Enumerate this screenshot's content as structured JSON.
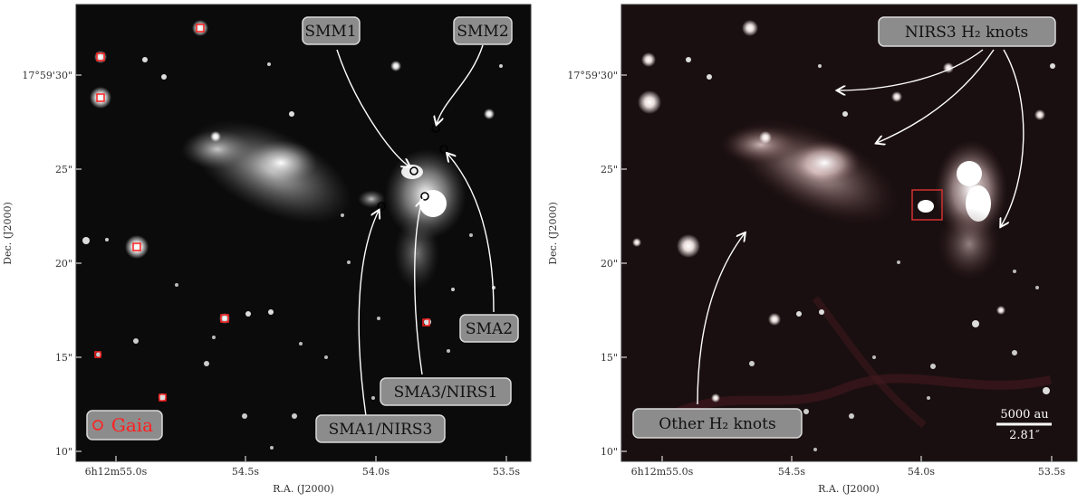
{
  "left_panel": {
    "labels": {
      "smm1": "SMM1",
      "smm2": "SMM2",
      "sma2": "SMA2",
      "sma3_nirs1": "SMA3/NIRS1",
      "sma1_nirs3": "SMA1/NIRS3",
      "gaia": "Gaia"
    },
    "colors": {
      "gaia": "#ff2020",
      "circle": "#000000",
      "arrow": "#ffffff"
    },
    "y_axis_label": "Dec. (J2000)",
    "x_axis_label": "R.A. (J2000)",
    "y_ticks": [
      "17°59'30\"",
      "25\"",
      "20\"",
      "15\"",
      "10\""
    ],
    "x_ticks": [
      "6h12m55.0s",
      "54.5s",
      "54.0s",
      "53.5s"
    ]
  },
  "right_panel": {
    "labels": {
      "nirs3_knots": "NIRS3 H₂ knots",
      "other_knots": "Other H₂ knots",
      "scalebar_au": "5000 au",
      "scalebar_arcsec": "2.81″"
    },
    "colors": {
      "box": "#d23030",
      "arrow": "#ffffff"
    },
    "y_axis_label": "Dec. (J2000)",
    "x_axis_label": "R.A. (J2000)",
    "y_ticks": [
      "17°59'30\"",
      "25\"",
      "20\"",
      "15\"",
      "10\""
    ],
    "x_ticks": [
      "6h12m55.0s",
      "54.5s",
      "54.0s",
      "53.5s"
    ]
  }
}
